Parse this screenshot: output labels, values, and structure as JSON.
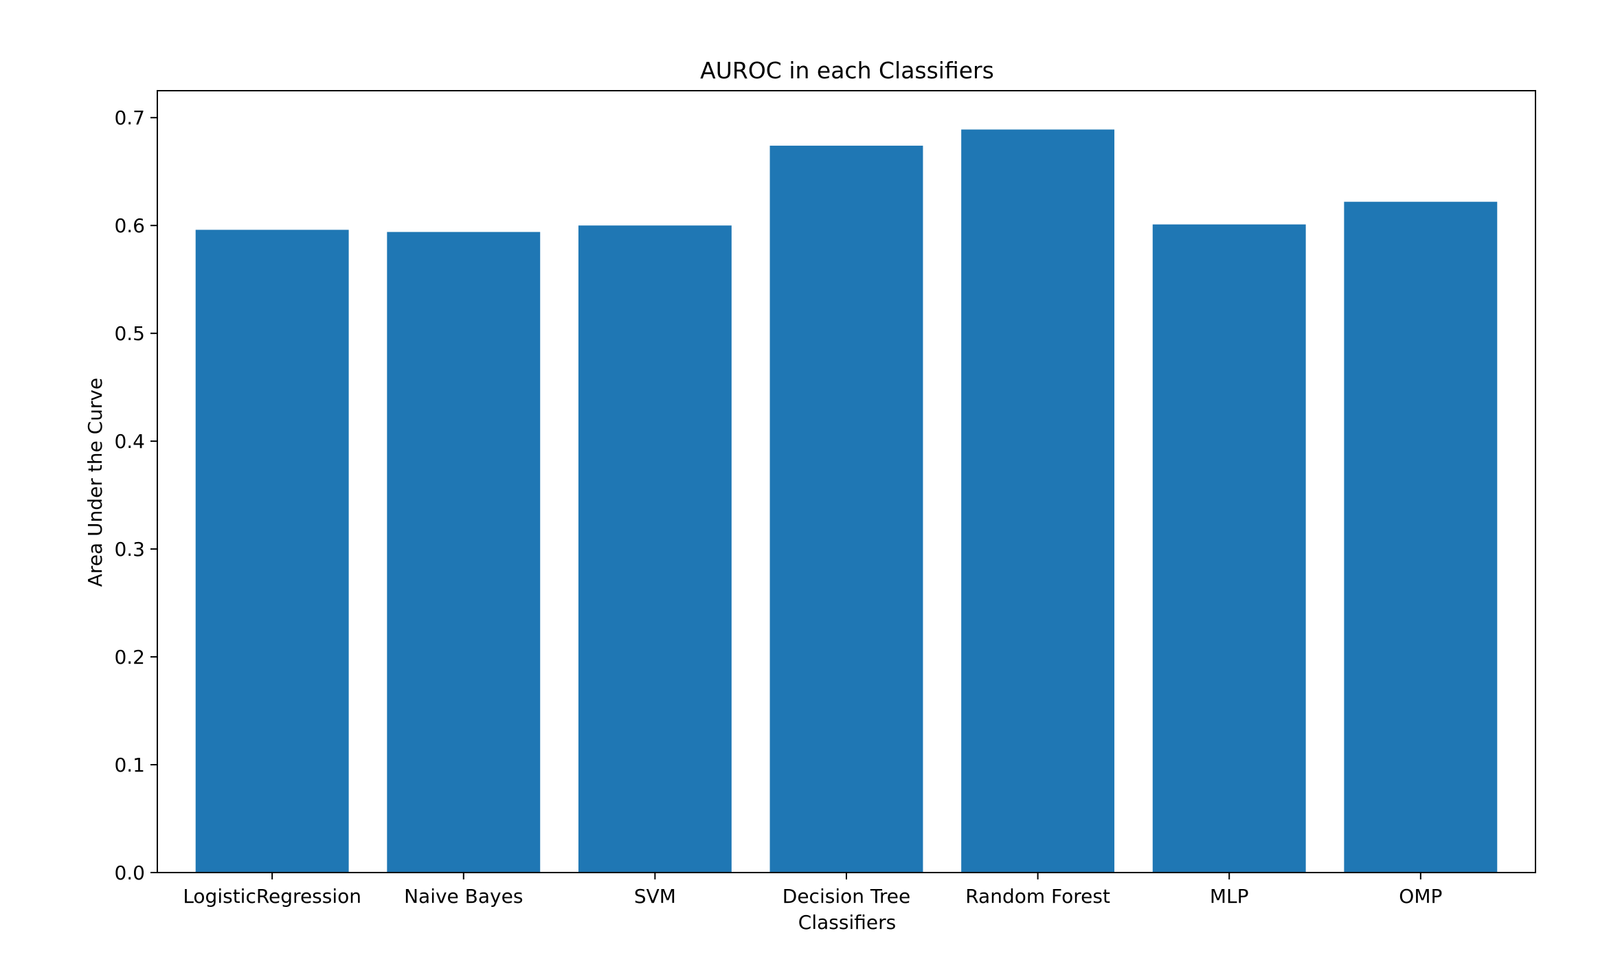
{
  "chart_data": {
    "type": "bar",
    "title": "AUROC in each Classifiers",
    "xlabel": "Classifiers",
    "ylabel": "Area Under the Curve",
    "categories": [
      "LogisticRegression",
      "Naive Bayes",
      "SVM",
      "Decision Tree",
      "Random Forest",
      "MLP",
      "OMP"
    ],
    "values": [
      0.596,
      0.594,
      0.6,
      0.674,
      0.689,
      0.601,
      0.622
    ],
    "ylim": [
      0,
      0.725
    ],
    "yticks": [
      "0.0",
      "0.1",
      "0.2",
      "0.3",
      "0.4",
      "0.5",
      "0.6",
      "0.7"
    ],
    "grid": false,
    "bar_color": "#1f77b4"
  }
}
